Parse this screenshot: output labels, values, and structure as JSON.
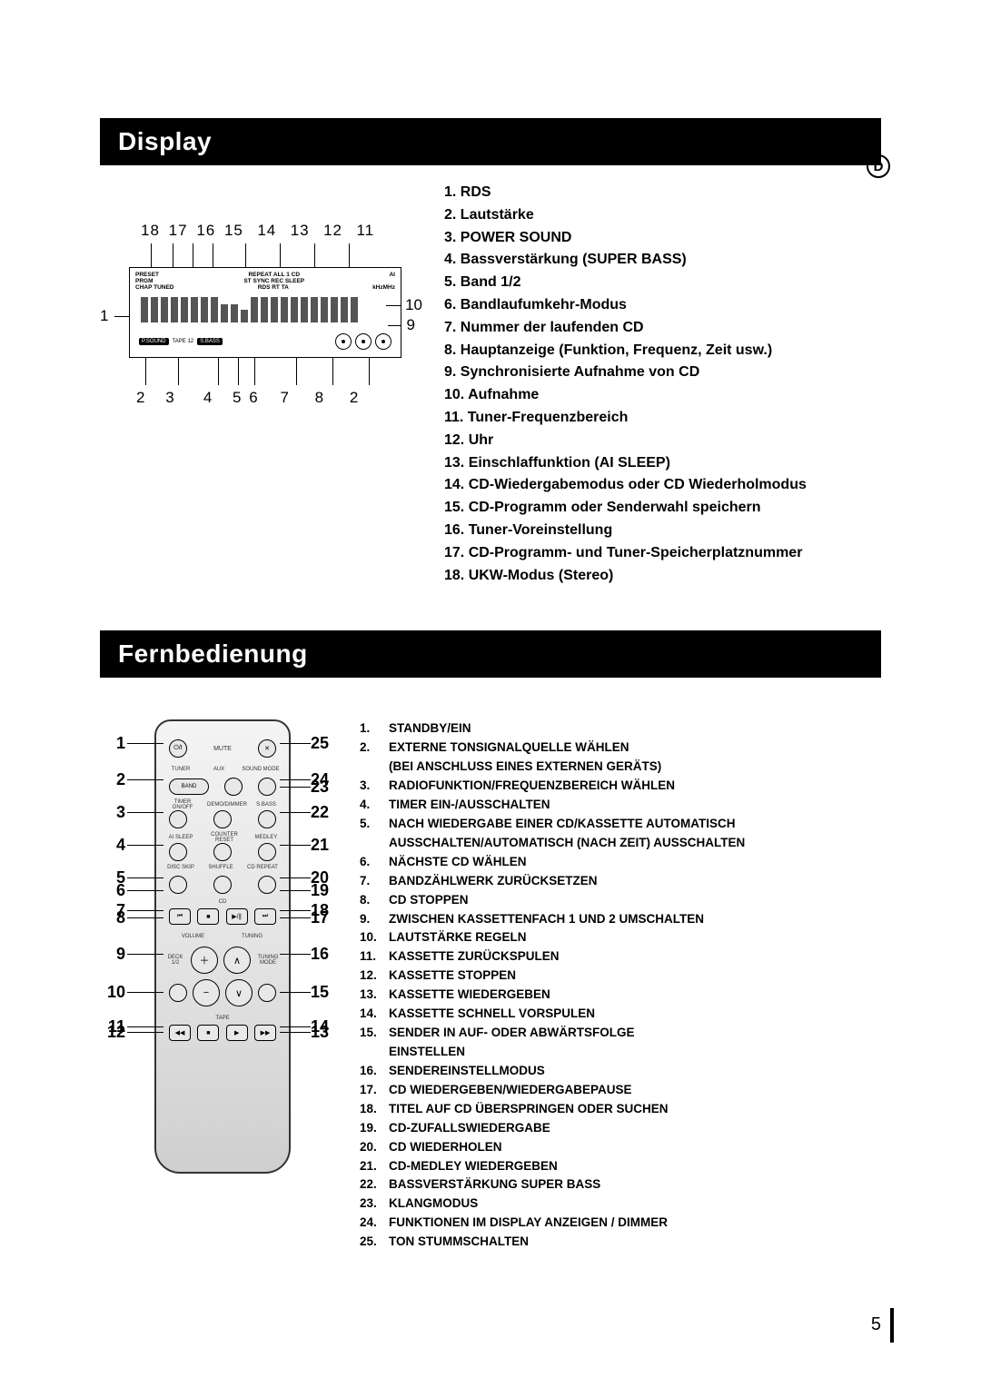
{
  "page_number": "5",
  "language_badge": "D",
  "sections": {
    "display": {
      "title": "Display",
      "top_callouts": [
        "18",
        "17",
        "16",
        "15",
        "14",
        "13",
        "12",
        "11"
      ],
      "left_callouts": [
        "1"
      ],
      "right_callouts": [
        "10",
        "9"
      ],
      "bottom_callouts": [
        "2",
        "3",
        "4",
        "5",
        "6",
        "7",
        "8",
        "2"
      ],
      "panel_text": {
        "row1_left": "PRESET",
        "row1_mid": "REPEAT ALL 1 CD",
        "row1_right": "AI",
        "row2_left": "PRGM",
        "row2_mid": "ST SYNC REC SLEEP",
        "row3_left": "CHAP TUNED",
        "row3_mid": "RDS RT TA",
        "row3_right": "kHzMHz",
        "chip_psound": "P.SOUND",
        "chip_tape": "TAPE 12",
        "chip_sbass": "S.BASS"
      },
      "legend": [
        "1. RDS",
        "2. Lautstärke",
        "3. POWER SOUND",
        "4. Bassverstärkung (SUPER BASS)",
        "5. Band 1/2",
        "6. Bandlaufumkehr-Modus",
        "7. Nummer der laufenden CD",
        "8. Hauptanzeige (Funktion, Frequenz, Zeit usw.)",
        "9. Synchronisierte Aufnahme von CD",
        "10. Aufnahme",
        "11. Tuner-Frequenzbereich",
        "12. Uhr",
        "13. Einschlaffunktion (AI SLEEP)",
        "14. CD-Wiedergabemodus oder CD Wiederholmodus",
        "15. CD-Programm oder Senderwahl speichern",
        "16. Tuner-Voreinstellung",
        "17. CD-Programm- und Tuner-Speicherplatznummer",
        "18. UKW-Modus (Stereo)"
      ]
    },
    "remote": {
      "title": "Fernbedienung",
      "buttons": {
        "mute": "MUTE",
        "power": "⏻/I",
        "aux": "AUX",
        "sound_mode": "SOUND MODE",
        "tuner": "TUNER",
        "band": "BAND",
        "timer": "TIMER ON/OFF",
        "demo": "DEMO/DIMMER",
        "sbass": "S.BASS",
        "aisleep": "AI SLEEP",
        "counter": "COUNTER RESET",
        "medley": "MEDLEY",
        "discskip": "DISC SKIP",
        "shuffle": "SHUFFLE",
        "cdrepeat": "CD REPEAT",
        "cd_label": "CD",
        "volume": "VOLUME",
        "tuning": "TUNING",
        "deck": "DECK 1/2",
        "tuning_mode": "TUNING MODE",
        "tape": "TAPE"
      },
      "left_callouts": [
        "1",
        "2",
        "3",
        "4",
        "5",
        "6",
        "7",
        "8",
        "9",
        "10",
        "11",
        "12"
      ],
      "right_callouts": [
        "25",
        "24",
        "23",
        "22",
        "21",
        "20",
        "19",
        "18",
        "17",
        "16",
        "15",
        "14",
        "13"
      ],
      "legend": [
        {
          "n": "1.",
          "t": "STANDBY/EIN"
        },
        {
          "n": "2.",
          "t": "EXTERNE TONSIGNALQUELLE WÄHLEN"
        },
        {
          "n": "",
          "t": "(BEI ANSCHLUSS EINES EXTERNEN GERÄTS)"
        },
        {
          "n": "3.",
          "t": "RADIOFUNKTION/FREQUENZBEREICH WÄHLEN"
        },
        {
          "n": "4.",
          "t": "TIMER EIN-/AUSSCHALTEN"
        },
        {
          "n": "5.",
          "t": "NACH WIEDERGABE EINER CD/KASSETTE AUTOMATISCH"
        },
        {
          "n": "",
          "t": "AUSSCHALTEN/AUTOMATISCH (NACH ZEIT) AUSSCHALTEN"
        },
        {
          "n": "6.",
          "t": "NÄCHSTE CD WÄHLEN"
        },
        {
          "n": "7.",
          "t": "BANDZÄHLWERK ZURÜCKSETZEN"
        },
        {
          "n": "8.",
          "t": "CD STOPPEN"
        },
        {
          "n": "9.",
          "t": "ZWISCHEN KASSETTENFACH 1 UND 2 UMSCHALTEN"
        },
        {
          "n": "10.",
          "t": "LAUTSTÄRKE REGELN"
        },
        {
          "n": "11.",
          "t": "KASSETTE ZURÜCKSPULEN"
        },
        {
          "n": "12.",
          "t": "KASSETTE STOPPEN"
        },
        {
          "n": "13.",
          "t": "KASSETTE WIEDERGEBEN"
        },
        {
          "n": "14.",
          "t": "KASSETTE SCHNELL VORSPULEN"
        },
        {
          "n": "15.",
          "t": "SENDER IN AUF- ODER ABWÄRTSFOLGE"
        },
        {
          "n": "",
          "t": "EINSTELLEN"
        },
        {
          "n": "16.",
          "t": "SENDEREINSTELLMODUS"
        },
        {
          "n": "17.",
          "t": "CD WIEDERGEBEN/WIEDERGABEPAUSE"
        },
        {
          "n": "18.",
          "t": "TITEL AUF CD ÜBERSPRINGEN ODER SUCHEN"
        },
        {
          "n": "19.",
          "t": "CD-ZUFALLSWIEDERGABE"
        },
        {
          "n": "20.",
          "t": "CD WIEDERHOLEN"
        },
        {
          "n": "21.",
          "t": "CD-MEDLEY WIEDERGEBEN"
        },
        {
          "n": "22.",
          "t": "BASSVERSTÄRKUNG SUPER BASS"
        },
        {
          "n": "23.",
          "t": "KLANGMODUS"
        },
        {
          "n": "24.",
          "t": "FUNKTIONEN IM DISPLAY ANZEIGEN / DIMMER"
        },
        {
          "n": "25.",
          "t": "TON STUMMSCHALTEN"
        }
      ]
    }
  }
}
